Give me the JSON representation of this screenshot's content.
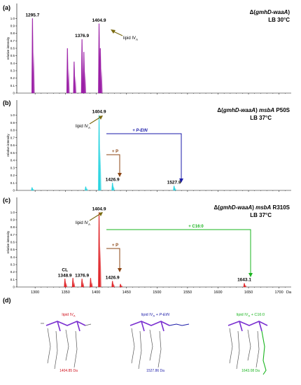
{
  "figure": {
    "panel_letters": [
      "(a)",
      "(b)",
      "(c)",
      "(d)"
    ],
    "ylabel": "relative intensity",
    "xunit": "Da",
    "yticks": [
      "0",
      "0.1",
      "0.2",
      "0.3",
      "0.4",
      "0.5",
      "0.6",
      "0.7",
      "0.8",
      "0.9",
      "1.0"
    ]
  },
  "panels": [
    {
      "strain_prefix": "Δ(",
      "strain_italic": "gmhD-waaA",
      "strain_suffix": ")",
      "strain_extra": "",
      "condition": "LB 30°C",
      "lipid_label": "lipid IV",
      "lipid_sub": "A"
    },
    {
      "strain_prefix": "Δ(",
      "strain_italic": "gmhD-waaA",
      "strain_suffix": ") ",
      "strain_extra_italic": "msbA",
      "strain_extra": " P50S",
      "condition": "LB 37°C",
      "lipid_label": "lipid IV",
      "lipid_sub": "A",
      "arrow_pethn": "+ P-EtN",
      "arrow_p": "+ P"
    },
    {
      "strain_prefix": "Δ(",
      "strain_italic": "gmhD-waaA",
      "strain_suffix": ") ",
      "strain_extra_italic": "msbA",
      "strain_extra": " R310S",
      "condition": "LB 37°C",
      "lipid_label": "lipid IV",
      "lipid_sub": "A",
      "arrow_c16": "+ C16:0",
      "arrow_p": "+ P"
    }
  ],
  "structures": [
    {
      "title_main": "lipid IV",
      "title_sub": "A",
      "title_extra": "",
      "mass": "1404.85 Da",
      "color": "#d0101c"
    },
    {
      "title_main": "lipid IV",
      "title_sub": "A",
      "title_extra": " + P-EtN",
      "mass": "1527.86 Da",
      "color": "#1a1aa8"
    },
    {
      "title_main": "lipid IV",
      "title_sub": "A",
      "title_extra": " + C16:0",
      "mass": "1643.08 Da",
      "color": "#19b41e"
    }
  ],
  "chart_data": [
    {
      "type": "bar",
      "title": "Δ(gmhD-waaA) LB 30°C",
      "xlabel": "Da",
      "ylabel": "relative intensity",
      "xlim": [
        1270,
        1720
      ],
      "ylim": [
        0,
        1.2
      ],
      "xticks": [
        1300,
        1350,
        1400,
        1450,
        1500,
        1550,
        1600,
        1650,
        1700
      ],
      "color": "#9b1fa6",
      "peaks": [
        {
          "mz": 1295.7,
          "intensity": 1.0,
          "label": "1295.7"
        },
        {
          "mz": 1353.0,
          "intensity": 0.6,
          "label": ""
        },
        {
          "mz": 1364.0,
          "intensity": 0.42,
          "label": ""
        },
        {
          "mz": 1376.9,
          "intensity": 0.72,
          "label": "1376.9"
        },
        {
          "mz": 1380.0,
          "intensity": 0.55,
          "label": ""
        },
        {
          "mz": 1404.9,
          "intensity": 0.93,
          "label": "1404.9"
        },
        {
          "mz": 1407.0,
          "intensity": 0.6,
          "label": ""
        }
      ]
    },
    {
      "type": "bar",
      "title": "Δ(gmhD-waaA) msbA P50S LB 37°C",
      "xlabel": "Da",
      "ylabel": "relative intensity",
      "xlim": [
        1270,
        1720
      ],
      "ylim": [
        0,
        1.2
      ],
      "xticks": [
        1300,
        1350,
        1400,
        1450,
        1500,
        1550,
        1600,
        1650,
        1700
      ],
      "color": "#2ad4e0",
      "peaks": [
        {
          "mz": 1295.0,
          "intensity": 0.04,
          "label": ""
        },
        {
          "mz": 1383.0,
          "intensity": 0.05,
          "label": ""
        },
        {
          "mz": 1404.9,
          "intensity": 1.0,
          "label": "1404.9"
        },
        {
          "mz": 1426.9,
          "intensity": 0.1,
          "label": "1426.9"
        },
        {
          "mz": 1527.9,
          "intensity": 0.06,
          "label": "1527.9"
        }
      ]
    },
    {
      "type": "bar",
      "title": "Δ(gmhD-waaA) msbA R310S LB 37°C",
      "xlabel": "Da",
      "ylabel": "relative intensity",
      "xlim": [
        1270,
        1720
      ],
      "ylim": [
        0,
        1.2
      ],
      "xticks": [
        1300,
        1350,
        1400,
        1450,
        1500,
        1550,
        1600,
        1650,
        1700
      ],
      "color": "#e0262a",
      "peaks": [
        {
          "mz": 1348.9,
          "intensity": 0.11,
          "label": "1348.9"
        },
        {
          "mz": 1362.0,
          "intensity": 0.12,
          "label": ""
        },
        {
          "mz": 1376.9,
          "intensity": 0.11,
          "label": "1376.9"
        },
        {
          "mz": 1391.0,
          "intensity": 0.12,
          "label": ""
        },
        {
          "mz": 1404.9,
          "intensity": 1.0,
          "label": "1404.9"
        },
        {
          "mz": 1426.9,
          "intensity": 0.08,
          "label": "1426.9"
        },
        {
          "mz": 1440.0,
          "intensity": 0.04,
          "label": ""
        },
        {
          "mz": 1643.1,
          "intensity": 0.05,
          "label": "1643.1"
        }
      ],
      "annotations": [
        {
          "text": "CL",
          "mz": 1348.9
        }
      ]
    }
  ]
}
